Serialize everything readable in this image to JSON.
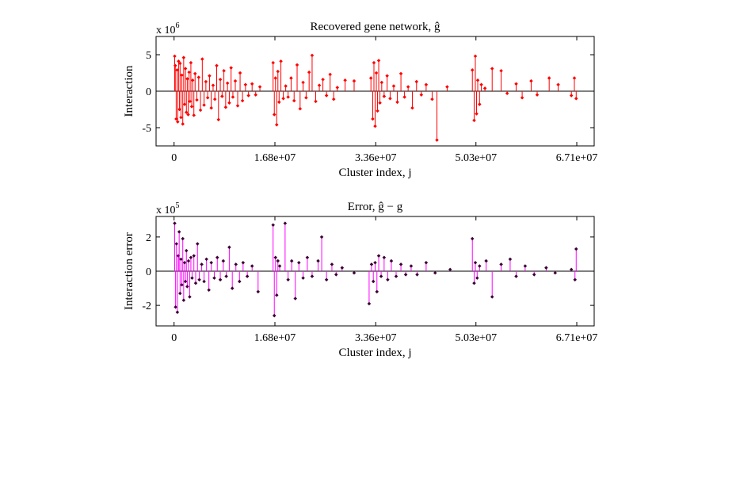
{
  "chart_data": [
    {
      "type": "stem",
      "title": "Recovered gene network, ĝ",
      "xlabel": "Cluster index, j",
      "ylabel": "Interaction",
      "exponent_label": "x 10",
      "exponent": "6",
      "xlim": [
        -3000000,
        70000000
      ],
      "ylim": [
        -7.5,
        7.5
      ],
      "x_ticks": [
        0,
        16800000,
        33600000,
        50300000,
        67100000
      ],
      "x_tick_labels": [
        "0",
        "1.68e+07",
        "3.36e+07",
        "5.03e+07",
        "6.71e+07"
      ],
      "y_ticks": [
        -5,
        0,
        5
      ],
      "y_tick_labels": [
        "-5",
        "0",
        "5"
      ],
      "color": "#ff0000",
      "marker_color": "#ff0000",
      "points": [
        [
          100000,
          4.8
        ],
        [
          200000,
          3.5
        ],
        [
          350000,
          -3.8
        ],
        [
          500000,
          2.9
        ],
        [
          600000,
          -4.2
        ],
        [
          750000,
          4.1
        ],
        [
          900000,
          -2.5
        ],
        [
          1000000,
          3.8
        ],
        [
          1150000,
          -3.6
        ],
        [
          1300000,
          2.2
        ],
        [
          1450000,
          -4.5
        ],
        [
          1600000,
          4.6
        ],
        [
          1750000,
          -1.8
        ],
        [
          1900000,
          3.1
        ],
        [
          2050000,
          -2.9
        ],
        [
          2200000,
          1.7
        ],
        [
          2350000,
          -3.2
        ],
        [
          2500000,
          2.6
        ],
        [
          2650000,
          -1.4
        ],
        [
          2800000,
          3.9
        ],
        [
          2950000,
          -2.1
        ],
        [
          3100000,
          1.5
        ],
        [
          3300000,
          -3.3
        ],
        [
          3500000,
          2.4
        ],
        [
          3800000,
          -1.2
        ],
        [
          4100000,
          1.9
        ],
        [
          4400000,
          -2.6
        ],
        [
          4700000,
          4.4
        ],
        [
          5000000,
          -1.9
        ],
        [
          5300000,
          1.3
        ],
        [
          5600000,
          -0.9
        ],
        [
          5900000,
          2.1
        ],
        [
          6200000,
          -2.3
        ],
        [
          6500000,
          0.8
        ],
        [
          6800000,
          -1.1
        ],
        [
          7100000,
          3.5
        ],
        [
          7400000,
          -3.9
        ],
        [
          7700000,
          1.6
        ],
        [
          8000000,
          -0.7
        ],
        [
          8300000,
          2.8
        ],
        [
          8600000,
          -2.2
        ],
        [
          8900000,
          1.1
        ],
        [
          9200000,
          -1.6
        ],
        [
          9500000,
          3.2
        ],
        [
          9800000,
          -0.8
        ],
        [
          10200000,
          1.4
        ],
        [
          10600000,
          -2.0
        ],
        [
          11000000,
          2.5
        ],
        [
          11400000,
          -1.3
        ],
        [
          11900000,
          0.9
        ],
        [
          12400000,
          -0.6
        ],
        [
          13000000,
          1.0
        ],
        [
          13600000,
          -0.5
        ],
        [
          14300000,
          0.6
        ],
        [
          16500000,
          3.9
        ],
        [
          16700000,
          -3.2
        ],
        [
          16900000,
          1.8
        ],
        [
          17100000,
          -4.6
        ],
        [
          17300000,
          2.7
        ],
        [
          17500000,
          -1.5
        ],
        [
          17800000,
          4.1
        ],
        [
          18200000,
          -1.0
        ],
        [
          18600000,
          0.7
        ],
        [
          19000000,
          -0.8
        ],
        [
          19500000,
          1.8
        ],
        [
          20000000,
          -1.3
        ],
        [
          20500000,
          3.6
        ],
        [
          21000000,
          -2.4
        ],
        [
          21500000,
          1.2
        ],
        [
          22000000,
          -0.9
        ],
        [
          22500000,
          2.6
        ],
        [
          23000000,
          4.9
        ],
        [
          23600000,
          -1.4
        ],
        [
          24200000,
          0.8
        ],
        [
          24800000,
          1.6
        ],
        [
          25400000,
          -0.6
        ],
        [
          26000000,
          2.3
        ],
        [
          26600000,
          -1.1
        ],
        [
          27200000,
          0.5
        ],
        [
          28500000,
          1.5
        ],
        [
          30000000,
          1.4
        ],
        [
          32800000,
          1.8
        ],
        [
          33100000,
          -3.8
        ],
        [
          33300000,
          3.9
        ],
        [
          33500000,
          -4.8
        ],
        [
          33700000,
          2.5
        ],
        [
          33900000,
          -2.7
        ],
        [
          34100000,
          4.2
        ],
        [
          34300000,
          -1.6
        ],
        [
          34600000,
          1.2
        ],
        [
          35000000,
          -0.7
        ],
        [
          35500000,
          2.1
        ],
        [
          36000000,
          -1.0
        ],
        [
          36600000,
          0.7
        ],
        [
          37200000,
          -1.5
        ],
        [
          37800000,
          2.4
        ],
        [
          38400000,
          -0.8
        ],
        [
          39000000,
          0.6
        ],
        [
          39700000,
          -2.3
        ],
        [
          40400000,
          1.3
        ],
        [
          41200000,
          -0.5
        ],
        [
          42000000,
          0.9
        ],
        [
          43000000,
          -1.1
        ],
        [
          43800000,
          -6.7
        ],
        [
          45500000,
          0.6
        ],
        [
          49700000,
          2.9
        ],
        [
          50000000,
          -4.0
        ],
        [
          50200000,
          4.8
        ],
        [
          50400000,
          -3.1
        ],
        [
          50600000,
          1.5
        ],
        [
          50900000,
          -1.8
        ],
        [
          51200000,
          0.9
        ],
        [
          51800000,
          0.4
        ],
        [
          53000000,
          3.1
        ],
        [
          54500000,
          2.8
        ],
        [
          55500000,
          -0.3
        ],
        [
          57000000,
          1.0
        ],
        [
          58000000,
          -0.9
        ],
        [
          59500000,
          1.4
        ],
        [
          60500000,
          -0.5
        ],
        [
          62500000,
          1.8
        ],
        [
          64000000,
          0.9
        ],
        [
          66200000,
          -0.6
        ],
        [
          66700000,
          1.8
        ],
        [
          67000000,
          -1.0
        ]
      ]
    },
    {
      "type": "stem",
      "title": "Error, ĝ − g",
      "xlabel": "Cluster index, j",
      "ylabel": "Interaction error",
      "exponent_label": "x 10",
      "exponent": "5",
      "xlim": [
        -3000000,
        70000000
      ],
      "ylim": [
        -3.2,
        3.2
      ],
      "x_ticks": [
        0,
        16800000,
        33600000,
        50300000,
        67100000
      ],
      "x_tick_labels": [
        "0",
        "1.68e+07",
        "3.36e+07",
        "5.03e+07",
        "6.71e+07"
      ],
      "y_ticks": [
        -2,
        0,
        2
      ],
      "y_tick_labels": [
        "-2",
        "0",
        "2"
      ],
      "color": "#ff00ff",
      "marker_color": "#3a0030",
      "points": [
        [
          100000,
          2.8
        ],
        [
          250000,
          -2.1
        ],
        [
          400000,
          1.6
        ],
        [
          550000,
          -2.4
        ],
        [
          700000,
          0.9
        ],
        [
          850000,
          2.3
        ],
        [
          1000000,
          -1.3
        ],
        [
          1150000,
          0.7
        ],
        [
          1300000,
          -0.8
        ],
        [
          1450000,
          1.9
        ],
        [
          1600000,
          -1.7
        ],
        [
          1750000,
          0.5
        ],
        [
          1900000,
          -0.6
        ],
        [
          2050000,
          1.2
        ],
        [
          2200000,
          -0.9
        ],
        [
          2400000,
          0.6
        ],
        [
          2600000,
          -1.5
        ],
        [
          2800000,
          0.8
        ],
        [
          3000000,
          -0.4
        ],
        [
          3300000,
          0.9
        ],
        [
          3600000,
          -0.7
        ],
        [
          3900000,
          1.6
        ],
        [
          4200000,
          -0.5
        ],
        [
          4600000,
          0.4
        ],
        [
          5000000,
          -0.6
        ],
        [
          5400000,
          0.7
        ],
        [
          5800000,
          -1.1
        ],
        [
          6200000,
          0.5
        ],
        [
          6700000,
          -0.4
        ],
        [
          7200000,
          0.8
        ],
        [
          7700000,
          -0.5
        ],
        [
          8200000,
          0.6
        ],
        [
          8700000,
          -0.3
        ],
        [
          9200000,
          1.4
        ],
        [
          9700000,
          -1.0
        ],
        [
          10300000,
          0.4
        ],
        [
          10900000,
          -0.6
        ],
        [
          11500000,
          0.5
        ],
        [
          12200000,
          -0.3
        ],
        [
          13000000,
          0.3
        ],
        [
          14000000,
          -1.2
        ],
        [
          16500000,
          2.7
        ],
        [
          16700000,
          -2.6
        ],
        [
          16900000,
          0.8
        ],
        [
          17100000,
          -1.4
        ],
        [
          17300000,
          0.6
        ],
        [
          17600000,
          0.3
        ],
        [
          18500000,
          2.8
        ],
        [
          19000000,
          -0.5
        ],
        [
          19600000,
          0.6
        ],
        [
          20200000,
          -1.6
        ],
        [
          20800000,
          0.5
        ],
        [
          21500000,
          -0.4
        ],
        [
          22200000,
          0.8
        ],
        [
          23000000,
          -0.3
        ],
        [
          24000000,
          0.6
        ],
        [
          24600000,
          2.0
        ],
        [
          25400000,
          -0.5
        ],
        [
          26300000,
          0.4
        ],
        [
          27000000,
          -0.2
        ],
        [
          28000000,
          0.2
        ],
        [
          30000000,
          -0.1
        ],
        [
          32500000,
          -1.9
        ],
        [
          32900000,
          0.4
        ],
        [
          33200000,
          -0.6
        ],
        [
          33500000,
          0.5
        ],
        [
          33800000,
          -1.2
        ],
        [
          34100000,
          0.9
        ],
        [
          34500000,
          -0.3
        ],
        [
          35000000,
          0.8
        ],
        [
          35600000,
          -0.5
        ],
        [
          36200000,
          0.6
        ],
        [
          37000000,
          -0.3
        ],
        [
          37800000,
          0.4
        ],
        [
          38600000,
          -0.2
        ],
        [
          39500000,
          0.3
        ],
        [
          40500000,
          -0.2
        ],
        [
          42000000,
          0.5
        ],
        [
          43500000,
          -0.1
        ],
        [
          46000000,
          0.1
        ],
        [
          49700000,
          1.9
        ],
        [
          50000000,
          -0.7
        ],
        [
          50200000,
          0.5
        ],
        [
          50500000,
          -0.4
        ],
        [
          50900000,
          0.3
        ],
        [
          52000000,
          0.6
        ],
        [
          53000000,
          -1.5
        ],
        [
          54500000,
          0.4
        ],
        [
          56000000,
          0.7
        ],
        [
          57000000,
          -0.3
        ],
        [
          58500000,
          0.3
        ],
        [
          60000000,
          -0.2
        ],
        [
          62000000,
          0.2
        ],
        [
          63500000,
          -0.1
        ],
        [
          66200000,
          0.1
        ],
        [
          66800000,
          -0.5
        ],
        [
          67000000,
          1.3
        ]
      ]
    }
  ]
}
